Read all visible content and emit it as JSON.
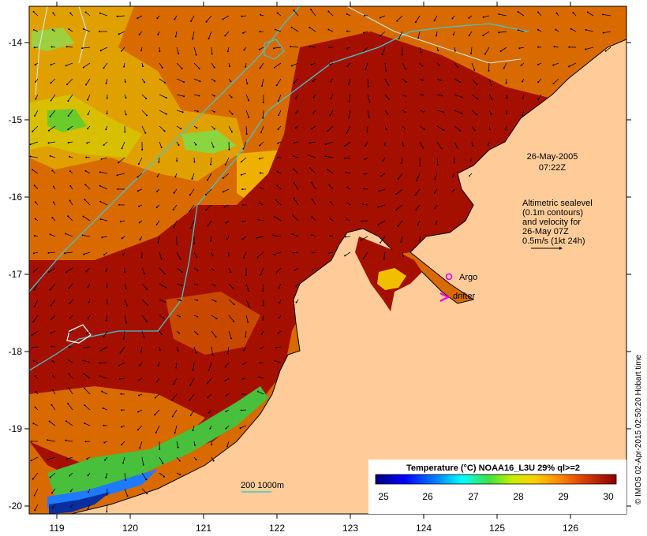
{
  "x_ticks": [
    "119",
    "120",
    "121",
    "122",
    "123",
    "124",
    "125",
    "126"
  ],
  "y_ticks": [
    "-14",
    "-15",
    "-16",
    "-17",
    "-18",
    "-19",
    "-20"
  ],
  "timestamp": {
    "date": "26-May-2005",
    "time": "07:22Z"
  },
  "altimetry_note": [
    "Altimetric sealevel",
    "(0.1m contours)",
    "and velocity for",
    "26-May 07Z",
    "0.5m/s (1kt 24h)"
  ],
  "argo_label": "Argo",
  "drifter_label": "drifter",
  "depth_scale_label": "200  1000m",
  "colorbar": {
    "title": "Temperature (°C) NOAA16_L3U 29% ql>=2",
    "ticks": [
      "25",
      "26",
      "27",
      "28",
      "29",
      "30"
    ]
  },
  "credit": "© IMOS 02-Apr-2015 02:50:20 Hobart time",
  "colors": {
    "land": "#FFCC99",
    "warm_sea": "#A50F00",
    "orange_sea": "#DC6400",
    "contour": "#40C8C8",
    "argo": "#E600E6"
  }
}
